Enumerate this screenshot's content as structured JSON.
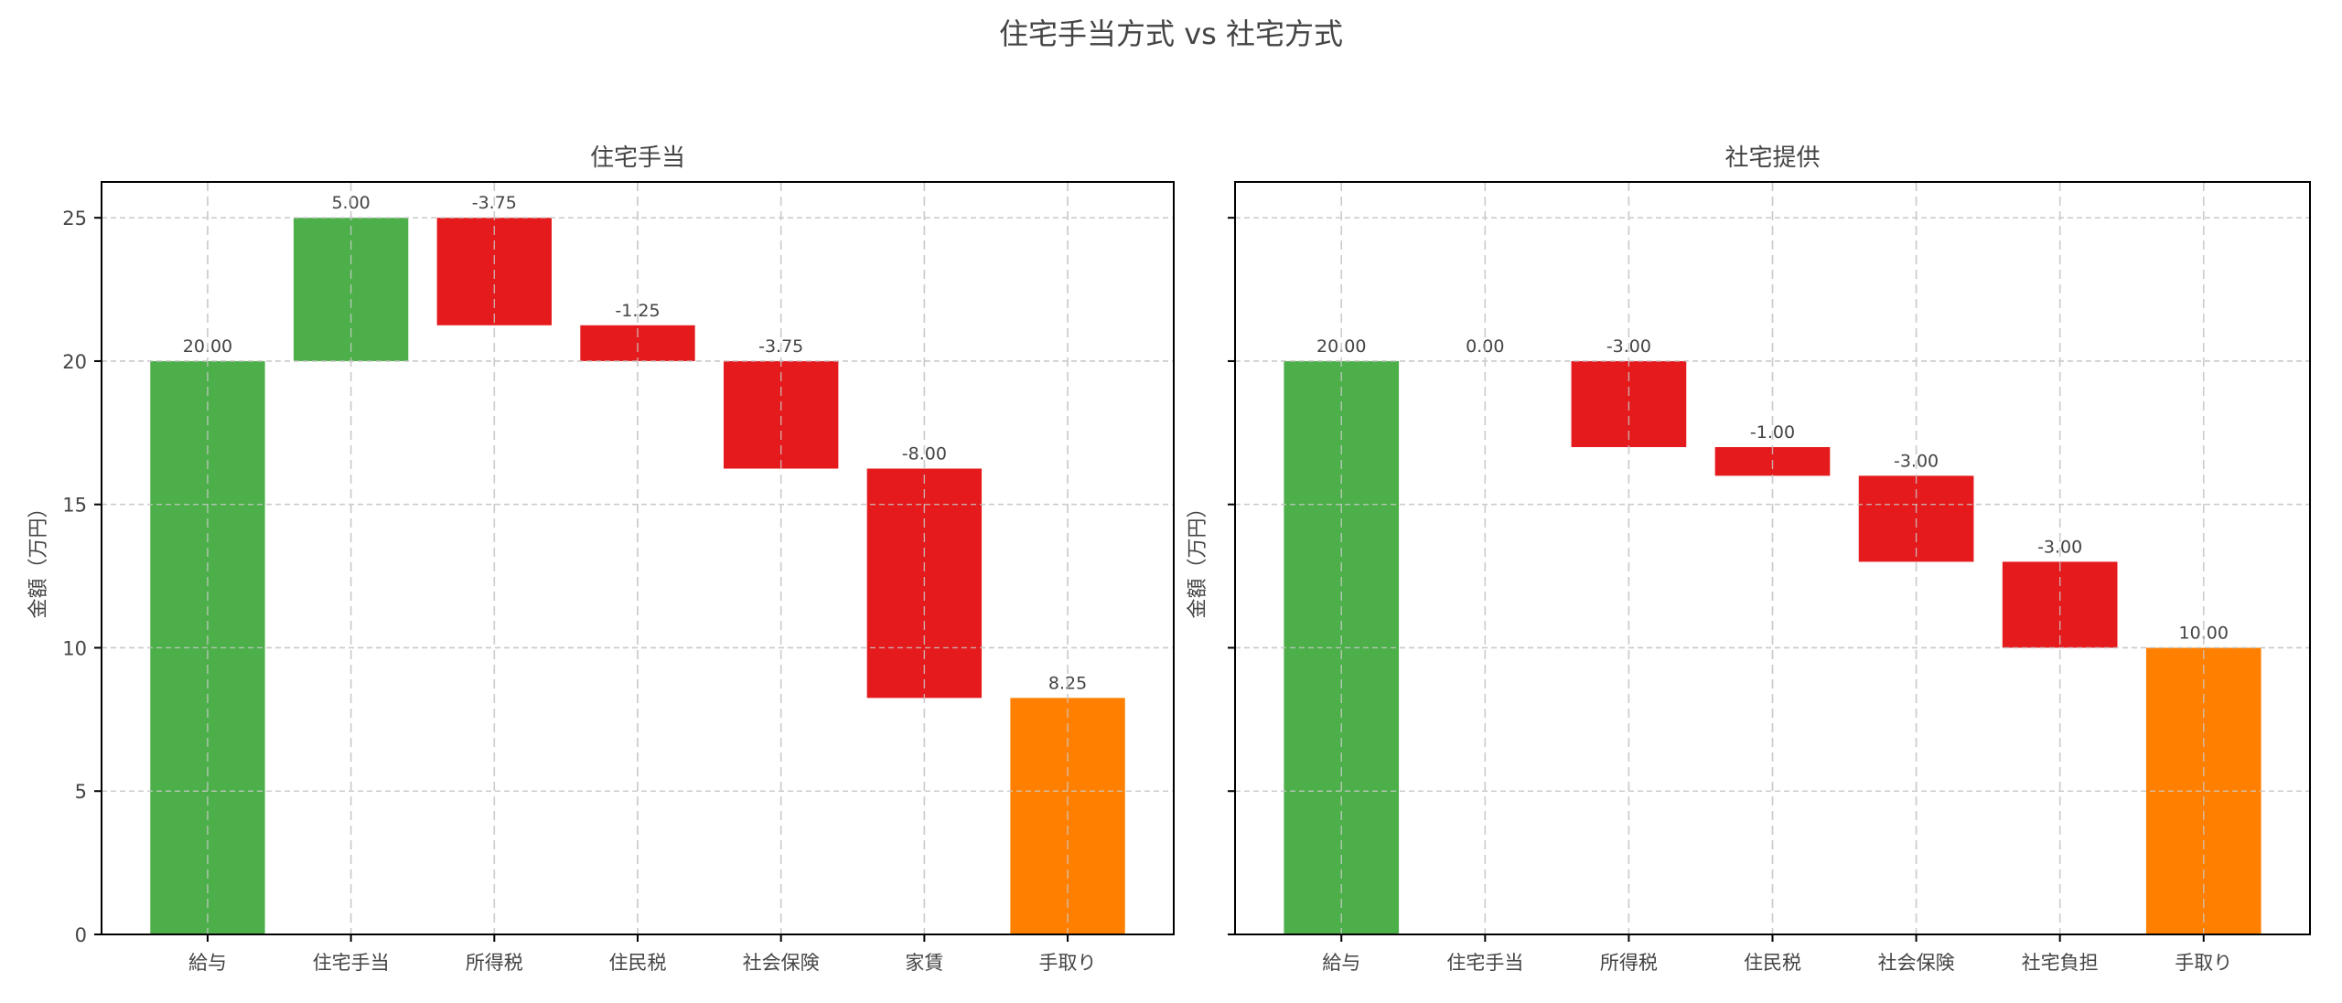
{
  "title": "住宅手当方式 vs 社宅方式",
  "colors": {
    "increase": "#4daf4a",
    "decrease": "#e41a1c",
    "total": "#ff7f00",
    "grid": "#cccccc",
    "axis": "#000000"
  },
  "chart_data": [
    {
      "type": "bar",
      "subtype": "waterfall",
      "title": "住宅手当",
      "xlabel": "",
      "ylabel": "金額（万円）",
      "categories": [
        "給与",
        "住宅手当",
        "所得税",
        "住民税",
        "社会保険",
        "家賃",
        "手取り"
      ],
      "values": [
        20.0,
        5.0,
        -3.75,
        -1.25,
        -3.75,
        -8.0,
        8.25
      ],
      "kinds": [
        "start",
        "delta",
        "delta",
        "delta",
        "delta",
        "delta",
        "total"
      ],
      "data_labels": [
        "20.00",
        "5.00",
        "-3.75",
        "-1.25",
        "-3.75",
        "-8.00",
        "8.25"
      ],
      "ylim": [
        0,
        26.25
      ],
      "yticks": [
        0,
        5,
        10,
        15,
        20,
        25
      ],
      "ytick_labels_visible": true,
      "grid": true
    },
    {
      "type": "bar",
      "subtype": "waterfall",
      "title": "社宅提供",
      "xlabel": "",
      "ylabel": "金額（万円）",
      "categories": [
        "給与",
        "住宅手当",
        "所得税",
        "住民税",
        "社会保険",
        "社宅負担",
        "手取り"
      ],
      "values": [
        20.0,
        0.0,
        -3.0,
        -1.0,
        -3.0,
        -3.0,
        10.0
      ],
      "kinds": [
        "start",
        "delta",
        "delta",
        "delta",
        "delta",
        "delta",
        "total"
      ],
      "data_labels": [
        "20.00",
        "0.00",
        "-3.00",
        "-1.00",
        "-3.00",
        "-3.00",
        "10.00"
      ],
      "ylim": [
        0,
        26.25
      ],
      "yticks": [
        0,
        5,
        10,
        15,
        20,
        25
      ],
      "ytick_labels_visible": false,
      "grid": true
    }
  ]
}
